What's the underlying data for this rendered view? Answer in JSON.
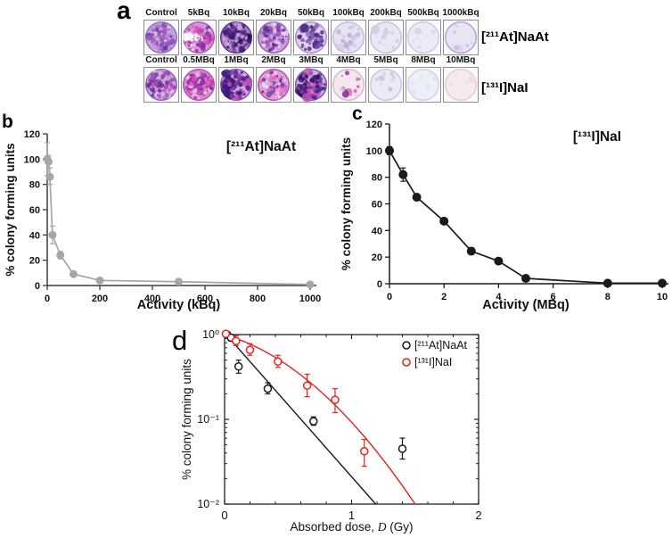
{
  "panel_labels": {
    "a": "a",
    "b": "b",
    "c": "c",
    "d": "d"
  },
  "panel_a": {
    "rows": [
      {
        "side_label": "[²¹¹At]NaAt",
        "dishes": [
          {
            "label": "Control",
            "base": "#c0a2da",
            "rim": "#8e6cc0",
            "dots": [
              "#5f35a0",
              "#8a4fb8",
              "#a75fc2",
              "#d9c2ec"
            ],
            "density": 80
          },
          {
            "label": "5kBq",
            "base": "#d795d6",
            "rim": "#a855b0",
            "dots": [
              "#a935ae",
              "#7a2f9f",
              "#e14fc0",
              "#ffffff"
            ],
            "density": 80
          },
          {
            "label": "10kBq",
            "base": "#a87cc2",
            "rim": "#5a2f92",
            "dots": [
              "#3d1a72",
              "#52248c",
              "#2a0f58",
              "#c9a8e0"
            ],
            "density": 95
          },
          {
            "label": "20kBq",
            "base": "#c79bd4",
            "rim": "#9160b4",
            "dots": [
              "#5a2f92",
              "#7a3fa8",
              "#a54fb8",
              "#e8d5f2"
            ],
            "density": 80
          },
          {
            "label": "50kBq",
            "base": "#ddd2ec",
            "rim": "#a88cc8",
            "dots": [
              "#43217c",
              "#5a2f92",
              "#8a5fb8"
            ],
            "density": 48
          },
          {
            "label": "100kBq",
            "base": "#e8e3f2",
            "rim": "#c4b8dc",
            "dots": [
              "#cbbfe0",
              "#b8a8d4"
            ],
            "density": 22
          },
          {
            "label": "200kBq",
            "base": "#eae6f4",
            "rim": "#c8bede",
            "dots": [
              "#d2c8e6"
            ],
            "density": 12
          },
          {
            "label": "500kBq",
            "base": "#edeaf6",
            "rim": "#cdc4e2",
            "dots": [
              "#d8d0ea"
            ],
            "density": 8
          },
          {
            "label": "1000kBq",
            "base": "#e9e4f3",
            "rim": "#b49ad6",
            "dots": [
              "#d2c6e8",
              "#c2b2de"
            ],
            "density": 8
          }
        ]
      },
      {
        "side_label": "[¹³¹I]NaI",
        "dishes": [
          {
            "label": "Control",
            "base": "#c79ed8",
            "rim": "#9a5fb8",
            "dots": [
              "#8a3fae",
              "#5f2f96",
              "#c44fb8",
              "#e0c2ee"
            ],
            "density": 82
          },
          {
            "label": "0.5MBq",
            "base": "#dc86ce",
            "rim": "#b052ae",
            "dots": [
              "#c138b0",
              "#8a2fa2",
              "#e55fc6",
              "#f2d0ea"
            ],
            "density": 85
          },
          {
            "label": "1MBq",
            "base": "#d6a4da",
            "rim": "#8a4fae",
            "dots": [
              "#3b1a7e",
              "#6a2f9e",
              "#c44fb8"
            ],
            "density": 70,
            "blob": "left"
          },
          {
            "label": "2MBq",
            "base": "#e09ed8",
            "rim": "#ab4fb0",
            "dots": [
              "#ad3bae",
              "#5f2f96",
              "#e06ac8",
              "#f4dcf0"
            ],
            "density": 75
          },
          {
            "label": "3MBq",
            "base": "#cfb0e2",
            "rim": "#7a4fa8",
            "dots": [
              "#2e1468",
              "#52248c",
              "#c44fb8"
            ],
            "density": 68,
            "blob": "left"
          },
          {
            "label": "4MBq",
            "base": "#f4e7ef",
            "rim": "#d8b8cc",
            "dots": [
              "#c23a9f",
              "#8a2f9e",
              "#ecd2e4"
            ],
            "density": 14
          },
          {
            "label": "5MBq",
            "base": "#eceaf5",
            "rim": "#c9c2e4",
            "dots": [
              "#d5cfe9",
              "#c5bede"
            ],
            "density": 14
          },
          {
            "label": "8MBq",
            "base": "#edeff8",
            "rim": "#ccd0ec",
            "dots": [
              "#dde0f2"
            ],
            "density": 8
          },
          {
            "label": "10MBq",
            "base": "#f7eaef",
            "rim": "#e4c8d4",
            "dots": [
              "#f0dae4"
            ],
            "density": 5
          }
        ]
      }
    ]
  },
  "chart_data": [
    {
      "id": "b",
      "type": "line",
      "title": "[²¹¹At]NaAt",
      "xlabel": "Activity (kBq)",
      "ylabel": "% colony forming units",
      "xlim": [
        0,
        1000
      ],
      "ylim": [
        0,
        120
      ],
      "xticks": [
        0,
        200,
        400,
        600,
        800,
        1000
      ],
      "yticks": [
        0,
        20,
        40,
        60,
        80,
        100,
        120
      ],
      "color": "#a6a6a6",
      "axis_color": "#3c3c3c",
      "x": [
        0,
        5,
        10,
        20,
        50,
        100,
        200,
        500,
        1000
      ],
      "y": [
        100,
        98,
        86,
        40,
        24,
        9,
        4,
        3,
        0.8
      ],
      "ylo": [
        87,
        93,
        80,
        33,
        21,
        8,
        3.5,
        2.5,
        0.4
      ],
      "yhi": [
        113,
        103,
        93,
        47,
        27,
        10,
        4.5,
        3.5,
        1.2
      ]
    },
    {
      "id": "c",
      "type": "line",
      "title": "[¹³¹I]NaI",
      "xlabel": "Activity (MBq)",
      "ylabel": "% colony forming units",
      "xlim": [
        0,
        10
      ],
      "ylim": [
        0,
        120
      ],
      "xticks": [
        0,
        2,
        4,
        6,
        8,
        10
      ],
      "yticks": [
        0,
        20,
        40,
        60,
        80,
        100,
        120
      ],
      "color": "#1a1a1a",
      "axis_color": "#1a1a1a",
      "x": [
        0,
        0.5,
        1,
        2,
        3,
        4,
        5,
        8,
        10
      ],
      "y": [
        100,
        82,
        65,
        47,
        24.5,
        17,
        4,
        0.4,
        0.4
      ],
      "ylo": [
        97,
        77,
        63,
        45,
        22,
        15.5,
        3.5,
        0.2,
        0.2
      ],
      "yhi": [
        103,
        87,
        67,
        49,
        27,
        18.5,
        4.5,
        0.6,
        0.6
      ]
    },
    {
      "id": "d",
      "type": "scatter",
      "yscale": "log",
      "ylabel": "% colony forming units",
      "xlabel_pre": "Absorbed dose, ",
      "xlabel_italic": "D",
      "xlabel_post": " (Gy)",
      "xlim": [
        0,
        2
      ],
      "ylim": [
        0.01,
        1
      ],
      "xticks": [
        0,
        1,
        2
      ],
      "xminor": [
        0.2,
        0.4,
        0.6,
        0.8,
        1.2,
        1.4,
        1.6,
        1.8
      ],
      "ytick_vals": [
        1,
        0.1,
        0.01
      ],
      "ytick_labels": [
        "10⁰",
        "10⁻¹",
        "10⁻²"
      ],
      "legend_position": "top-right",
      "series": [
        {
          "name": "[²¹¹At]NaAt",
          "color": "#1a1a1a",
          "x": [
            0.02,
            0.05,
            0.11,
            0.34,
            0.7,
            1.4
          ],
          "y": [
            1.0,
            0.92,
            0.42,
            0.23,
            0.095,
            0.045
          ],
          "ylo": [
            0.95,
            0.84,
            0.35,
            0.2,
            0.085,
            0.034
          ],
          "yhi": [
            1.06,
            1.0,
            0.5,
            0.27,
            0.107,
            0.06
          ],
          "fit": [
            [
              0,
              1.05
            ],
            [
              1.19,
              0.01
            ]
          ]
        },
        {
          "name": "[¹³¹I]NaI",
          "color": "#e8211d",
          "x": [
            0.01,
            0.09,
            0.2,
            0.42,
            0.65,
            0.87,
            1.1
          ],
          "y": [
            1.02,
            0.84,
            0.66,
            0.48,
            0.25,
            0.17,
            0.042
          ],
          "ylo": [
            0.97,
            0.74,
            0.57,
            0.41,
            0.185,
            0.12,
            0.028
          ],
          "yhi": [
            1.07,
            0.97,
            0.78,
            0.57,
            0.34,
            0.23,
            0.058
          ],
          "fit": [
            [
              0,
              1.0
            ],
            [
              0.1,
              0.892
            ],
            [
              0.2,
              0.775
            ],
            [
              0.3,
              0.654
            ],
            [
              0.4,
              0.537
            ],
            [
              0.5,
              0.43
            ],
            [
              0.6,
              0.334
            ],
            [
              0.7,
              0.2525
            ],
            [
              0.8,
              0.186
            ],
            [
              0.9,
              0.133
            ],
            [
              1.0,
              0.0925
            ],
            [
              1.1,
              0.0627
            ],
            [
              1.2,
              0.0413
            ],
            [
              1.3,
              0.0265
            ],
            [
              1.4,
              0.0165
            ],
            [
              1.5,
              0.01
            ]
          ]
        }
      ]
    }
  ]
}
